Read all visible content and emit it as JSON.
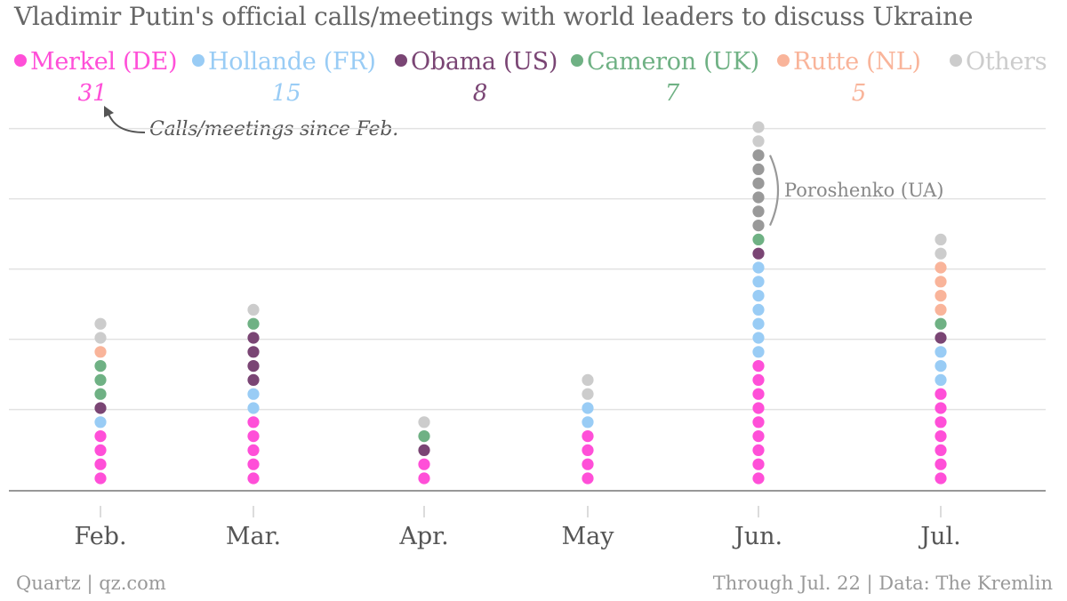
{
  "header": {
    "title": "Vladimir Putin's official calls/meetings with world leaders to discuss Ukraine"
  },
  "legend": [
    {
      "label": "Merkel (DE)",
      "color": "#ff4fd8"
    },
    {
      "label": "Hollande (FR)",
      "color": "#99ccf5"
    },
    {
      "label": "Obama (US)",
      "color": "#7a4574"
    },
    {
      "label": "Cameron (UK)",
      "color": "#6fb184"
    },
    {
      "label": "Rutte (NL)",
      "color": "#f9b49a"
    },
    {
      "label": "Others",
      "color": "#cccccc"
    }
  ],
  "totals": [
    {
      "leader": "Merkel (DE)",
      "value": "31",
      "color": "#ff4fd8"
    },
    {
      "leader": "Hollande (FR)",
      "value": "15",
      "color": "#99ccf5"
    },
    {
      "leader": "Obama (US)",
      "value": "8",
      "color": "#7a4574"
    },
    {
      "leader": "Cameron (UK)",
      "value": "7",
      "color": "#6fb184"
    },
    {
      "leader": "Rutte (NL)",
      "value": "5",
      "color": "#f9b49a"
    }
  ],
  "annotation": {
    "totals_note": "Calls/meetings since Feb.",
    "bracket_label": "Poroshenko (UA)",
    "bracket_color": "#999999"
  },
  "footer": {
    "source_left": "Quartz | qz.com",
    "source_right": "Through Jul. 22 | Data: The Kremlin"
  },
  "chart_data": {
    "type": "scatter",
    "style": "stacked dot columns, one dot per call/meeting",
    "categories": [
      "Feb.",
      "Mar.",
      "Apr.",
      "May",
      "Jun.",
      "Jul."
    ],
    "series": [
      {
        "name": "Merkel (DE)",
        "color": "#ff4fd8",
        "values": [
          4,
          5,
          2,
          4,
          9,
          7
        ]
      },
      {
        "name": "Hollande (FR)",
        "color": "#99ccf5",
        "values": [
          1,
          2,
          0,
          2,
          7,
          3
        ]
      },
      {
        "name": "Obama (US)",
        "color": "#7a4574",
        "values": [
          1,
          4,
          1,
          0,
          1,
          1
        ]
      },
      {
        "name": "Cameron (UK)",
        "color": "#6fb184",
        "values": [
          3,
          1,
          1,
          0,
          1,
          1
        ]
      },
      {
        "name": "Rutte (NL)",
        "color": "#f9b49a",
        "values": [
          1,
          0,
          0,
          0,
          0,
          4
        ]
      },
      {
        "name": "Poroshenko (UA)",
        "color": "#999999",
        "values": [
          0,
          0,
          0,
          0,
          6,
          0
        ]
      },
      {
        "name": "Others",
        "color": "#cccccc",
        "values": [
          2,
          1,
          1,
          2,
          2,
          2
        ]
      }
    ],
    "ylim": [
      0,
      26
    ],
    "grid": true
  }
}
